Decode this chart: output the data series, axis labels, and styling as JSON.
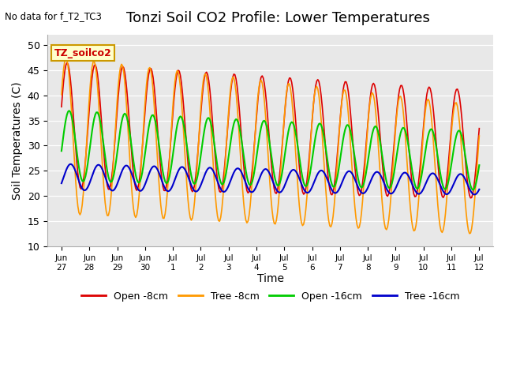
{
  "title": "Tonzi Soil CO2 Profile: Lower Temperatures",
  "subtitle": "No data for f_T2_TC3",
  "legend_label": "TZ_soilco2",
  "xlabel": "Time",
  "ylabel": "Soil Temperatures (C)",
  "ylim": [
    10,
    52
  ],
  "yticks": [
    10,
    15,
    20,
    25,
    30,
    35,
    40,
    45,
    50
  ],
  "x_tick_labels": [
    "Jun\n27",
    "Jun\n28",
    "Jun\n29",
    "Jun\n30",
    "Jul\n1",
    "Jul\n2",
    "Jul\n3",
    "Jul\n4",
    "Jul\n5",
    "Jul\n6",
    "Jul\n7",
    "Jul\n8",
    "Jul\n9",
    "Jul\n10",
    "Jul\n11",
    "Jul\n12"
  ],
  "x_tick_positions": [
    0,
    1,
    2,
    3,
    4,
    5,
    6,
    7,
    8,
    9,
    10,
    11,
    12,
    13,
    14,
    15
  ],
  "series_colors": {
    "open_8cm": "#dd0000",
    "tree_8cm": "#ff9900",
    "open_16cm": "#00cc00",
    "tree_16cm": "#0000cc"
  },
  "series_labels": [
    "Open -8cm",
    "Tree -8cm",
    "Open -16cm",
    "Tree -16cm"
  ],
  "plot_bg_color": "#e8e8e8",
  "title_fontsize": 13,
  "axis_fontsize": 10
}
